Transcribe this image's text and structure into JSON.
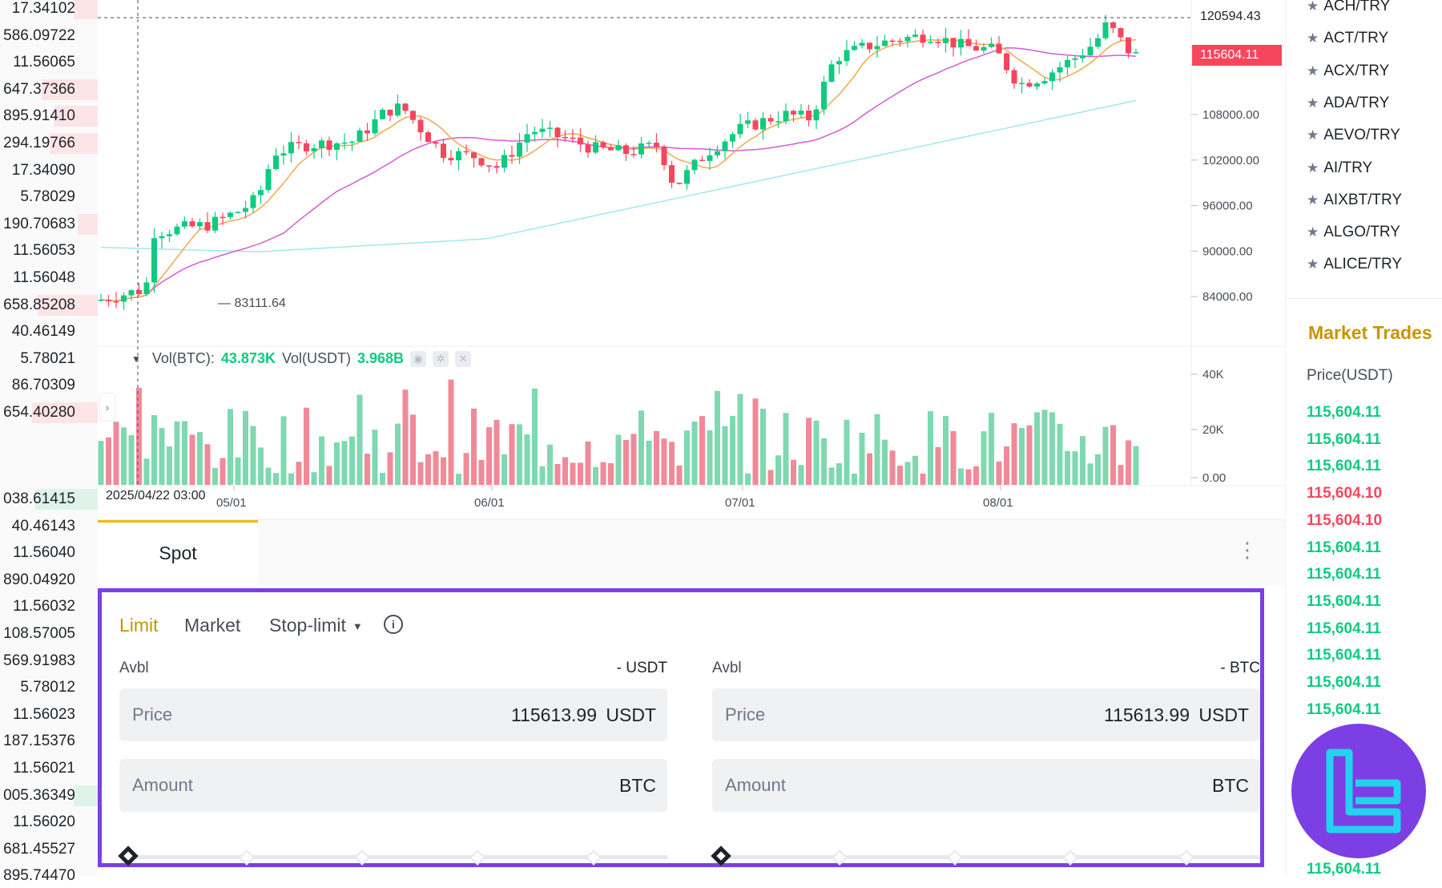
{
  "orderbook_strip": {
    "sell": [
      "17.34102",
      "586.09722",
      "11.56065",
      "647.37366",
      "895.91410",
      "294.19766",
      "17.34090",
      "5.78029",
      "190.70683",
      "11.56053",
      "11.56048",
      "658.85208",
      "40.46149",
      "5.78021",
      "86.70309",
      "654.40280"
    ],
    "buy": [
      "038.61415",
      "40.46143",
      "11.56040",
      "890.04920",
      "11.56032",
      "108.57005",
      "569.91983",
      "5.78012",
      "11.56023",
      "187.15376",
      "11.56021",
      "005.36349",
      "11.56020",
      "681.45527",
      "895.74470"
    ]
  },
  "chart": {
    "y_axis_ticks": [
      "108000.00",
      "102000.00",
      "96000.00",
      "90000.00",
      "84000.00"
    ],
    "volume_axis_ticks": [
      "40K",
      "20K",
      "0.00"
    ],
    "x_axis_ticks": [
      "05/01",
      "06/01",
      "07/01",
      "08/01"
    ],
    "crosshair_date": "2025/04/22 03:00",
    "crosshair_price": "120594.43",
    "last_price": "115604.11",
    "low_marker": "83111.64",
    "volume_legend": {
      "label_btc": "Vol(BTC):",
      "value_btc": "43.873K",
      "label_usdt": "Vol(USDT)",
      "value_usdt": "3.968B"
    },
    "colors": {
      "up": "#0ecb81",
      "down": "#f6465d",
      "ma7": "#f0a94b",
      "ma25": "#d65ad6",
      "ma99": "#9fe8ec"
    }
  },
  "chart_data": {
    "type": "candlestick",
    "x": [
      "2025/04/22",
      "05/01",
      "06/01",
      "07/01",
      "08/01"
    ],
    "y_range": [
      80000,
      125000
    ],
    "last_price": 115604.11,
    "highlighted_high": 120594.43,
    "low": 83111.64,
    "volume_range": [
      0,
      45000
    ]
  },
  "pairs": {
    "items": [
      "ACH/TRY",
      "ACT/TRY",
      "ACX/TRY",
      "ADA/TRY",
      "AEVO/TRY",
      "AI/TRY",
      "AIXBT/TRY",
      "ALGO/TRY",
      "ALICE/TRY"
    ]
  },
  "market_trades": {
    "title": "Market Trades",
    "column_header": "Price(USDT)",
    "rows": [
      {
        "price": "115,604.11",
        "side": "up"
      },
      {
        "price": "115,604.11",
        "side": "up"
      },
      {
        "price": "115,604.11",
        "side": "up"
      },
      {
        "price": "115,604.10",
        "side": "down"
      },
      {
        "price": "115,604.10",
        "side": "down"
      },
      {
        "price": "115,604.11",
        "side": "up"
      },
      {
        "price": "115,604.11",
        "side": "up"
      },
      {
        "price": "115,604.11",
        "side": "up"
      },
      {
        "price": "115,604.11",
        "side": "up"
      },
      {
        "price": "115,604.11",
        "side": "up"
      },
      {
        "price": "115,604.11",
        "side": "up"
      },
      {
        "price": "115,604.11",
        "side": "up"
      }
    ],
    "last_row": "115,604.11"
  },
  "spot_tab": {
    "label": "Spot"
  },
  "order_form": {
    "types": {
      "limit": "Limit",
      "market": "Market",
      "stop_limit": "Stop-limit"
    },
    "buy": {
      "avbl_label": "Avbl",
      "avbl_value": "- USDT",
      "price_label": "Price",
      "price_value": "115613.99",
      "price_unit": "USDT",
      "amount_label": "Amount",
      "amount_unit": "BTC"
    },
    "sell": {
      "avbl_label": "Avbl",
      "avbl_value": "- BTC",
      "price_label": "Price",
      "price_value": "115613.99",
      "price_unit": "USDT",
      "amount_label": "Amount",
      "amount_unit": "BTC"
    },
    "accent": "#7b3fe4"
  }
}
